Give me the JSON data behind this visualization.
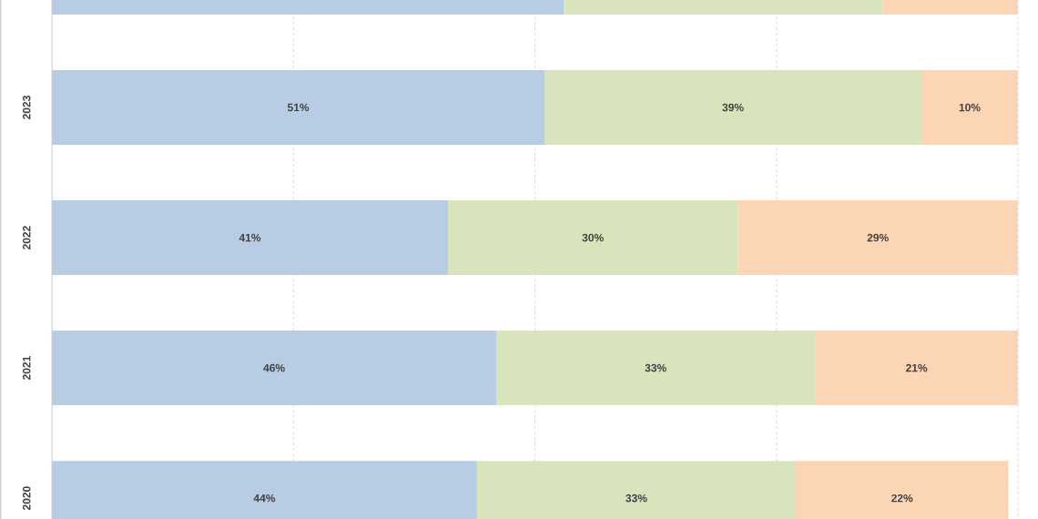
{
  "chart_data": {
    "type": "bar",
    "orientation": "horizontal",
    "stacked": true,
    "categories": [
      null,
      "2023",
      "2022",
      "2021",
      "2020"
    ],
    "series": [
      {
        "color": "#b8cce4",
        "values": [
          53,
          51,
          41,
          46,
          44
        ],
        "value_labels": [
          null,
          "51%",
          "41%",
          "46%",
          "44%"
        ]
      },
      {
        "color": "#d8e4bc",
        "values": [
          33,
          39,
          30,
          33,
          33
        ],
        "value_labels": [
          null,
          "39%",
          "30%",
          "33%",
          "33%"
        ]
      },
      {
        "color": "#fcd5b4",
        "values": [
          14,
          10,
          29,
          21,
          22
        ],
        "value_labels": [
          null,
          "10%",
          "29%",
          "21%",
          "22%"
        ]
      }
    ],
    "grid": "x"
  }
}
